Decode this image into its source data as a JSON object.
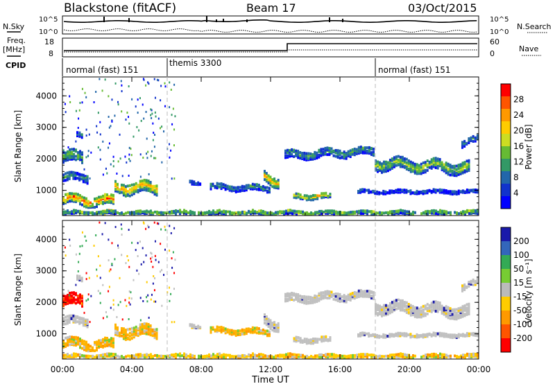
{
  "header": {
    "station": "Blackstone (fitACF)",
    "beam": "Beam 17",
    "date": "03/Oct/2015"
  },
  "panels": {
    "noise": {
      "left_label": "N.Sky",
      "right_label": "N.Search",
      "left_ticks": [
        "10^5",
        "10^0"
      ],
      "right_ticks": [
        "10^5",
        "10^0"
      ]
    },
    "freq": {
      "left_label_1": "Freq.",
      "left_label_2": "[MHz]",
      "right_label": "Nave",
      "left_ticks": [
        "18",
        "8"
      ],
      "right_ticks": [
        "60",
        "0"
      ]
    },
    "cpid": {
      "label": "CPID",
      "segments": [
        "normal (fast) 151",
        "themis 3300",
        "normal (fast) 151"
      ]
    }
  },
  "chart_data": [
    {
      "type": "heatmap",
      "name": "power",
      "ylabel": "Slant Range [km]",
      "yticks": [
        1000,
        2000,
        3000,
        4000
      ],
      "ylim": [
        200,
        4600
      ],
      "colorbar_label": "Power [dB]",
      "colorbar_ticks": [
        "28",
        "24",
        "20",
        "16",
        "12",
        "8",
        "4"
      ],
      "colorbar_colors": [
        "#ff0000",
        "#ff5500",
        "#ff9900",
        "#ffcc00",
        "#ccdd22",
        "#66bb33",
        "#339966",
        "#2266aa",
        "#1133cc",
        "#0000ff"
      ]
    },
    {
      "type": "heatmap",
      "name": "velocity",
      "ylabel": "Slant Range [km]",
      "yticks": [
        1000,
        2000,
        3000,
        4000
      ],
      "ylim": [
        200,
        4600
      ],
      "colorbar_label": "Velocity [m s⁻¹]",
      "colorbar_ticks": [
        "200",
        "100",
        "50",
        "15",
        "-15",
        "-50",
        "-100",
        "-200"
      ],
      "colorbar_colors": [
        "#1a1aaa",
        "#3366bb",
        "#33aa55",
        "#77cc33",
        "#bbbbbb",
        "#ffcc00",
        "#ff9900",
        "#ff5500",
        "#ff0000"
      ]
    }
  ],
  "xaxis": {
    "label": "Time UT",
    "ticks": [
      "00:00",
      "04:00",
      "08:00",
      "12:00",
      "16:00",
      "20:00",
      "00:00"
    ]
  },
  "colors": {
    "power_low": "#1f3fbf",
    "power_mid": "#2e8b57",
    "power_high": "#ff8c00",
    "vel_grey": "#c0c0c0",
    "vel_orange": "#ffa500"
  }
}
